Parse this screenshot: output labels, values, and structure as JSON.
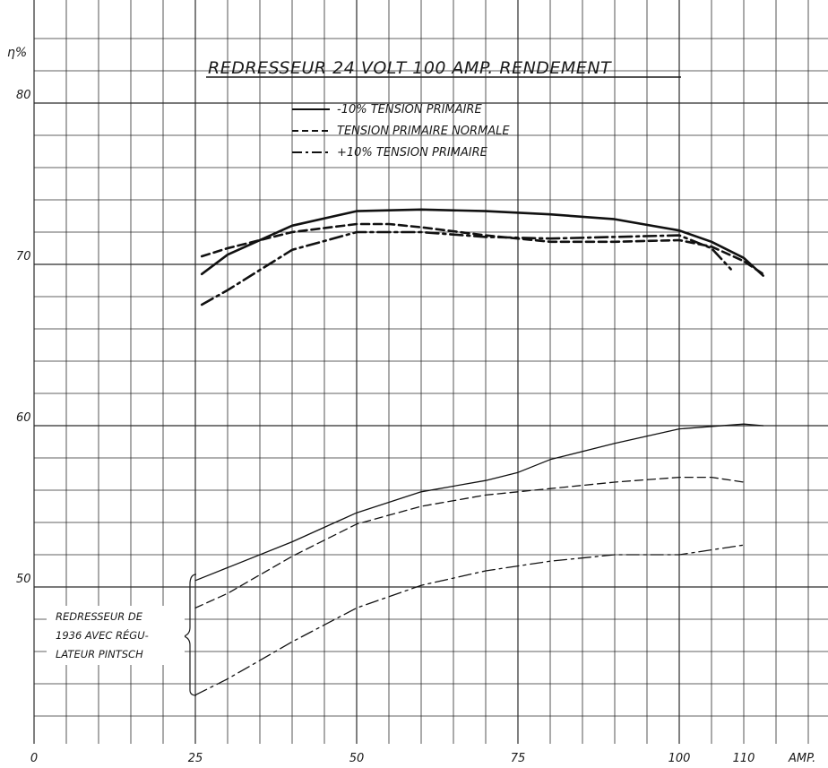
{
  "chart_data": {
    "type": "line",
    "title": "REDRESSEUR 24 VOLT 100 AMP. RENDEMENT",
    "xlabel": "AMP.",
    "ylabel": "η%",
    "x_ticks": [
      "0",
      "25",
      "50",
      "75",
      "100",
      "110"
    ],
    "y_ticks": [
      "50",
      "60",
      "70",
      "80"
    ],
    "xlim": [
      0,
      125
    ],
    "ylim": [
      40,
      84
    ],
    "grid": true,
    "legend_position": "top-center",
    "series": [
      {
        "name": "-10% TENSION PRIMAIRE",
        "style": "solid",
        "group": "new",
        "x": [
          26,
          30,
          40,
          50,
          60,
          70,
          80,
          90,
          100,
          105,
          110,
          113
        ],
        "y": [
          69.4,
          70.6,
          72.4,
          73.3,
          73.4,
          73.3,
          73.1,
          72.8,
          72.1,
          71.4,
          70.4,
          69.3
        ]
      },
      {
        "name": "TENSION PRIMAIRE NORMALE",
        "style": "dashed",
        "group": "new",
        "x": [
          26,
          30,
          40,
          50,
          55,
          60,
          70,
          80,
          90,
          100,
          105,
          110,
          113
        ],
        "y": [
          70.5,
          71.0,
          72.0,
          72.5,
          72.5,
          72.3,
          71.8,
          71.4,
          71.4,
          71.5,
          71.1,
          70.2,
          69.4
        ]
      },
      {
        "name": "+10% TENSION PRIMAIRE",
        "style": "dash-dot",
        "group": "new",
        "x": [
          26,
          30,
          40,
          50,
          60,
          70,
          80,
          90,
          100,
          105,
          108
        ],
        "y": [
          67.5,
          68.4,
          70.9,
          72.0,
          72.0,
          71.7,
          71.6,
          71.7,
          71.8,
          71.0,
          69.7
        ]
      },
      {
        "name": "-10% TENSION PRIMAIRE",
        "style": "solid",
        "group": "1936",
        "x": [
          25,
          30,
          40,
          50,
          60,
          70,
          75,
          80,
          90,
          100,
          110,
          113
        ],
        "y": [
          50.4,
          51.2,
          52.8,
          54.6,
          55.9,
          56.6,
          57.1,
          57.9,
          58.9,
          59.8,
          60.1,
          60.0
        ]
      },
      {
        "name": "TENSION PRIMAIRE NORMALE",
        "style": "dashed",
        "group": "1936",
        "x": [
          25,
          30,
          40,
          50,
          60,
          70,
          80,
          90,
          100,
          105,
          110
        ],
        "y": [
          48.7,
          49.6,
          51.9,
          53.9,
          55.0,
          55.7,
          56.1,
          56.5,
          56.8,
          56.8,
          56.5
        ]
      },
      {
        "name": "+10% TENSION PRIMAIRE",
        "style": "dash-dot",
        "group": "1936",
        "x": [
          25,
          30,
          40,
          50,
          60,
          70,
          80,
          90,
          100,
          110
        ],
        "y": [
          43.3,
          44.3,
          46.6,
          48.7,
          50.1,
          51.0,
          51.6,
          52.0,
          52.0,
          52.6
        ]
      }
    ],
    "annotations": [
      "REDRESSEUR DE",
      "1936 AVEC RÉGU-",
      "LATEUR PINTSCH"
    ]
  }
}
